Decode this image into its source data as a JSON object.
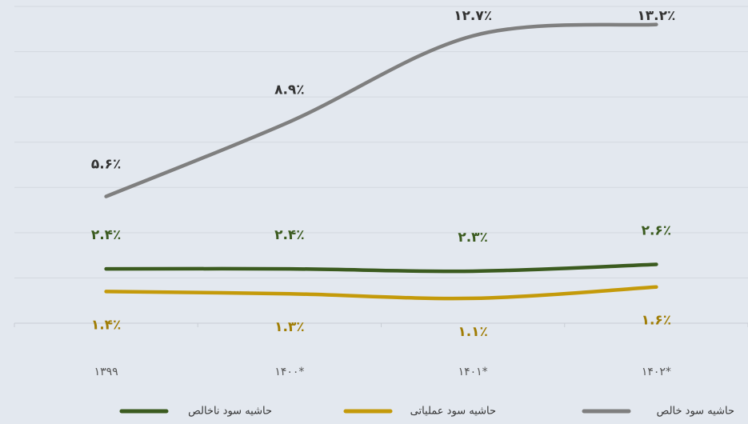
{
  "chart_data": {
    "type": "line",
    "categories": [
      "۱۳۹۹",
      "۱۴۰۰*",
      "۱۴۰۱*",
      "۱۴۰۲*"
    ],
    "series": [
      {
        "name": "حاشیه سود ناخالص",
        "color": "#3b5b1f",
        "values": [
          2.4,
          2.4,
          2.3,
          2.6
        ],
        "value_labels": [
          "۲.۴٪",
          "۲.۴٪",
          "۲.۳٪",
          "۲.۶٪"
        ]
      },
      {
        "name": "حاشیه سود عملیاتی",
        "color": "#c49a0a",
        "values": [
          1.4,
          1.3,
          1.1,
          1.6
        ],
        "value_labels": [
          "۱.۴٪",
          "۱.۳٪",
          "۱.۱٪",
          "۱.۶٪"
        ]
      },
      {
        "name": "حاشیه سود خالص",
        "color": "#7f7f7f",
        "values": [
          5.6,
          8.9,
          12.7,
          13.2
        ],
        "value_labels": [
          "۵.۶٪",
          "۸.۹٪",
          "۱۲.۷٪",
          "۱۳.۲٪"
        ]
      }
    ],
    "ylim": [
      0,
      14
    ],
    "yticks": [
      0,
      2,
      4,
      6,
      8,
      10,
      12,
      14
    ],
    "grid": true,
    "legend": "bottom"
  }
}
